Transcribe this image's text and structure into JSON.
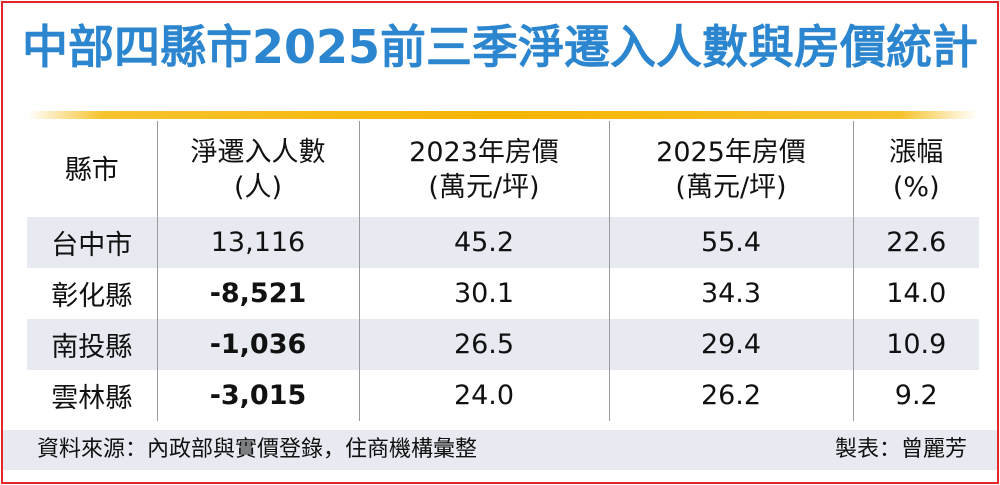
{
  "title": "中部四縣市2025前三季淨遷入人數與房價統計",
  "table": {
    "headers": [
      {
        "line1": "縣市",
        "line2": ""
      },
      {
        "line1": "淨遷入人數",
        "line2": "(人)"
      },
      {
        "line1": "2023年房價",
        "line2": "(萬元/坪)"
      },
      {
        "line1": "2025年房價",
        "line2": "(萬元/坪)"
      },
      {
        "line1": "漲幅",
        "line2": "(%)"
      }
    ],
    "rows": [
      {
        "city": "台中市",
        "net_migration": "13,116",
        "price_2023": "45.2",
        "price_2025": "55.4",
        "growth": "22.6"
      },
      {
        "city": "彰化縣",
        "net_migration": "-8,521",
        "price_2023": "30.1",
        "price_2025": "34.3",
        "growth": "14.0"
      },
      {
        "city": "南投縣",
        "net_migration": "-1,036",
        "price_2023": "26.5",
        "price_2025": "29.4",
        "growth": "10.9"
      },
      {
        "city": "雲林縣",
        "net_migration": "-3,015",
        "price_2023": "24.0",
        "price_2025": "26.2",
        "growth": "9.2"
      }
    ]
  },
  "footer": {
    "source": "資料來源：內政部與實價登錄，住商機構彙整",
    "maker": "製表：曾麗芳"
  },
  "colors": {
    "title": "#2c86cf",
    "border": "#e4262b",
    "rule": "#f4b400",
    "row_shade": "#e8eaf1"
  }
}
